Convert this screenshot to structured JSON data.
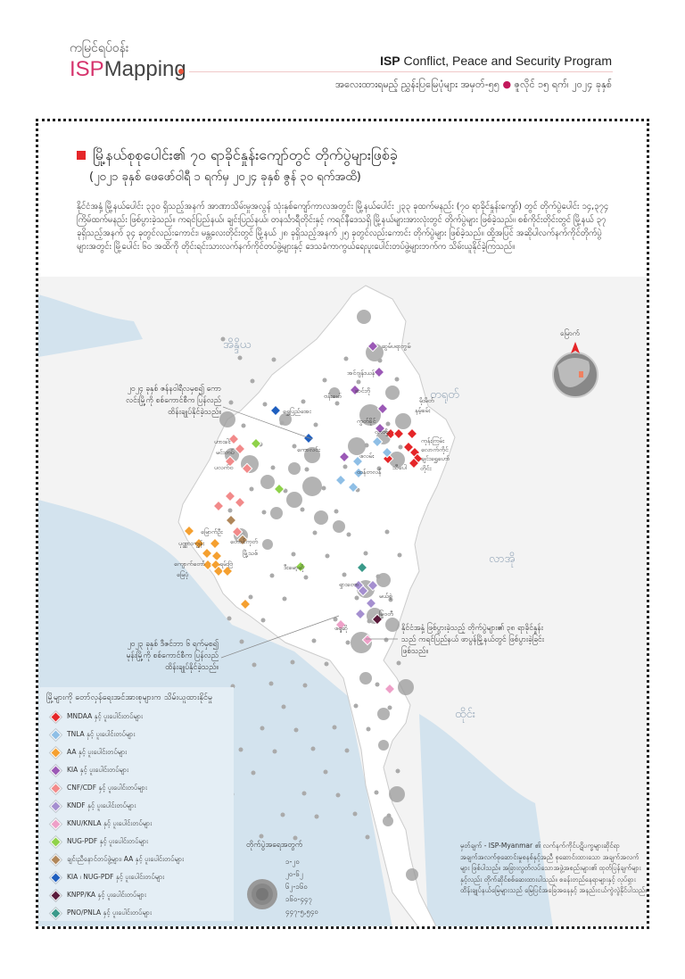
{
  "header": {
    "logo_burmese": "ကမြင်ရပ်ဝန်း",
    "logo_isp": "ISP",
    "logo_mapping": "Mapping",
    "program_bold": "ISP",
    "program_rest": "Conflict, Peace and Security Program",
    "series": "အလေးထားရမည့် ညွှန်းပြမြေပုံများ အမှတ်-၅၅",
    "date": "ဇူလိုင် ၁၅ ရက်၊ ၂၀၂၄ ခုနှစ်"
  },
  "title": "မြို့နယ်စုစုပေါင်း၏ ၇၀ ရာခိုင်နှုန်းကျော်တွင် တိုက်ပွဲများဖြစ်ခဲ့",
  "subtitle": "(၂၀၂၁ ခုနှစ် ဖေဖော်ဝါရီ ၁ ရက်မှ ၂၀၂၄ ခုနှစ် ဇွန် ၃၀ ရက်အထိ)",
  "paragraph": "နိုင်ငံအနှံ့ မြို့နယ်ပေါင်း ၃၃၀ ရှိသည့်အနက် အာဏာသိမ်းမှုအလွန် သုံးနှစ်ကျော်ကာလအတွင်း မြို့နယ်ပေါင်း ၂၃၃ ခုထက်မနည်း (၇၀ ရာခိုင်နှုန်းကျော်) တွင် တိုက်ပွဲပေါင်း ၁၄,၃၇၄ ကြိမ်ထက်မနည်း ဖြစ်ပွားခဲ့သည်။ ကရင်ပြည်နယ်၊ ချင်းပြည်နယ်၊ တနင်္သာရီတိုင်းနှင့် ကရင်နီဒေသရှိ မြို့နယ်များအားလုံးတွင် တိုက်ပွဲများ ဖြစ်ခဲ့သည်။ စစ်ကိုင်းတိုင်းတွင် မြို့နယ် ၃၇ ခုရှိသည့်အနက် ၃၄ ခုတွင်လည်းကောင်း၊ မန္တလေးတိုင်းတွင် မြို့နယ် ၂၈ ခုရှိသည့်အနက် ၂၅ ခုတွင်လည်းကောင်း တိုက်ပွဲများ ဖြစ်ခဲ့သည်။ ထို့အပြင် အဆိုပါလက်နက်ကိုင်တိုက်ပွဲများအတွင်း မြို့ပေါင်း ၆၀ အထိကို တိုင်းရင်းသားလက်နက်ကိုင်တပ်ဖွဲ့များနှင့် ဒေသခံကာကွယ်ရေးပူးပေါင်းတပ်ဖွဲ့များဘက်က သိမ်းယူနိုင်ခဲ့ကြသည်။",
  "countries": {
    "india": "အိန္ဒိယ",
    "china": "တရုတ်",
    "laos": "လာအို",
    "thailand": "ထိုင်း"
  },
  "north_label": "မြောက်",
  "callouts": {
    "kawlin": "၂၀၂၄ ခုနှစ် ဇန်နဝါရီလမှစ၍ ကောလင်းမြို့ကို စစ်ကောင်စီက ပြန်လည်ထိန်းချုပ်နိုင်ခဲ့သည်။",
    "hpapun": "၂၀၂၃ ခုနှစ် ဒီဇင်ဘာ ၆ ရက်မှစ၍ မုန်းမြို့ကို စစ်ကောင်စီက ပြန်လည်ထိန်းချုပ်နိုင်ခဲ့သည်။",
    "karen": "နိုင်ငံအနှံ့ ဖြစ်ပွားခဲ့သည့် တိုက်ပွဲများ၏ ၃၈ ရာခိုင်နှုန်းသည် ကရင်ပြည်နယ် ဖာပွန်မြို့နယ်တွင် ဖြစ်ပွားခဲ့ခြင်း ဖြစ်သည်။"
  },
  "towns": [
    "ဆွမ်ပရာဘွမ်",
    "အင်ဂျန်းယန်",
    "ဆင်ဘို",
    "ဗန်းမော်",
    "ရွှေပြည်အေး",
    "ကောလင်း",
    "မိုးမိတ်",
    "နမ့်ခမ်း",
    "ကွတ်ခိုင်",
    "သီပေါ",
    "လားရှိုး",
    "ကုန်းကြမ်း",
    "လောက်ကိုင်",
    "ချင်းရွှေဟော်",
    "တိုင်း",
    "ဖလမ်း",
    "ထန်တလန်",
    "ဟားခါး",
    "မင်းတပ်",
    "ပလက်ဝ",
    "မြောက်ဦး",
    "ပုဏ္ဏားကျွန်း",
    "ကျောက်တော်",
    "မြေပုံ",
    "ရမ်းဗြဲ",
    "တောင်ကုတ်",
    "မြို့သစ်",
    "ဒီးမော့ဆို",
    "ဖရူဆို",
    "ရှားတော",
    "မယ်စဲ့",
    "မြဝတီ"
  ],
  "legend": {
    "title": "မြို့များကို တော်လှန်ရေးအင်အားစုများက သိမ်းယူထားနိုင်မှု",
    "items": [
      {
        "label": "MNDAA နှင့် ပူးပေါင်းတပ်များ",
        "color": "#e52629"
      },
      {
        "label": "TNLA နှင့် ပူးပေါင်းတပ်များ",
        "color": "#8fbfe6"
      },
      {
        "label": "AA နှင့် ပူးပေါင်းတပ်များ",
        "color": "#f5a030"
      },
      {
        "label": "KIA နှင့် ပူးပေါင်းတပ်များ",
        "color": "#9b59b6"
      },
      {
        "label": "CNF/CDF နှင့် ပူးပေါင်းတပ်များ",
        "color": "#f28a8a"
      },
      {
        "label": "KNDF နှင့် ပူးပေါင်းတပ်များ",
        "color": "#a58fd0"
      },
      {
        "label": "KNU/KNLA နှင့် ပူးပေါင်းတပ်များ",
        "color": "#eea0c8"
      },
      {
        "label": "NUG-PDF နှင့် ပူးပေါင်းတပ်များ",
        "color": "#8fd24a"
      },
      {
        "label": "ချင်းညီနောင်တပ်ဖွဲ့များ၊ AA နှင့် ပူးပေါင်းတပ်များ",
        "color": "#b0875a"
      },
      {
        "label": "KIA ၊ NUG-PDF နှင့် ပူးပေါင်းတပ်များ",
        "color": "#1f5fbf"
      },
      {
        "label": "KNPP/KA နှင့် ပူးပေါင်းတပ်များ",
        "color": "#5a1a3a"
      },
      {
        "label": "PNO/PNLA နှင့် ပူးပေါင်းတပ်များ",
        "color": "#3a9a8a"
      }
    ]
  },
  "size_legend": {
    "title": "တိုက်ပွဲအရေအတွက်",
    "bins": [
      "၁-၂၀",
      "၂၀-၆၂",
      "၆၂-၁၆၀",
      "၁၆၀-၄၄၇",
      "၄၄၇-၅,၅၄၀"
    ]
  },
  "note": "မှတ်ချက် - ISP-Myanmar ၏ လက်နက်ကိုင်ပဋိပက္ခများဆိုင်ရာ အချက်အလက်စုဆောင်းမှုစနစ်နှင့်အညီ စုဆောင်းထားသော အချက်အလက်များ ဖြစ်ပါသည်။ အခြားလွတ်လပ်သောအဖွဲ့အစည်းများ၏ ထုတ်ပြန်ချက်များနှင့်လည်း တိုက်ဆိုင်စစ်ဆေးထားပါသည်။ စခန်းတည်နေရာများနှင့် လုပ်ရှားထိန်းချုပ်နယ်မြေများသည် မြေပြင်အခြေအနေနှင့် အနည်းငယ်ကွဲလွဲနိုင်ပါသည်။"
}
